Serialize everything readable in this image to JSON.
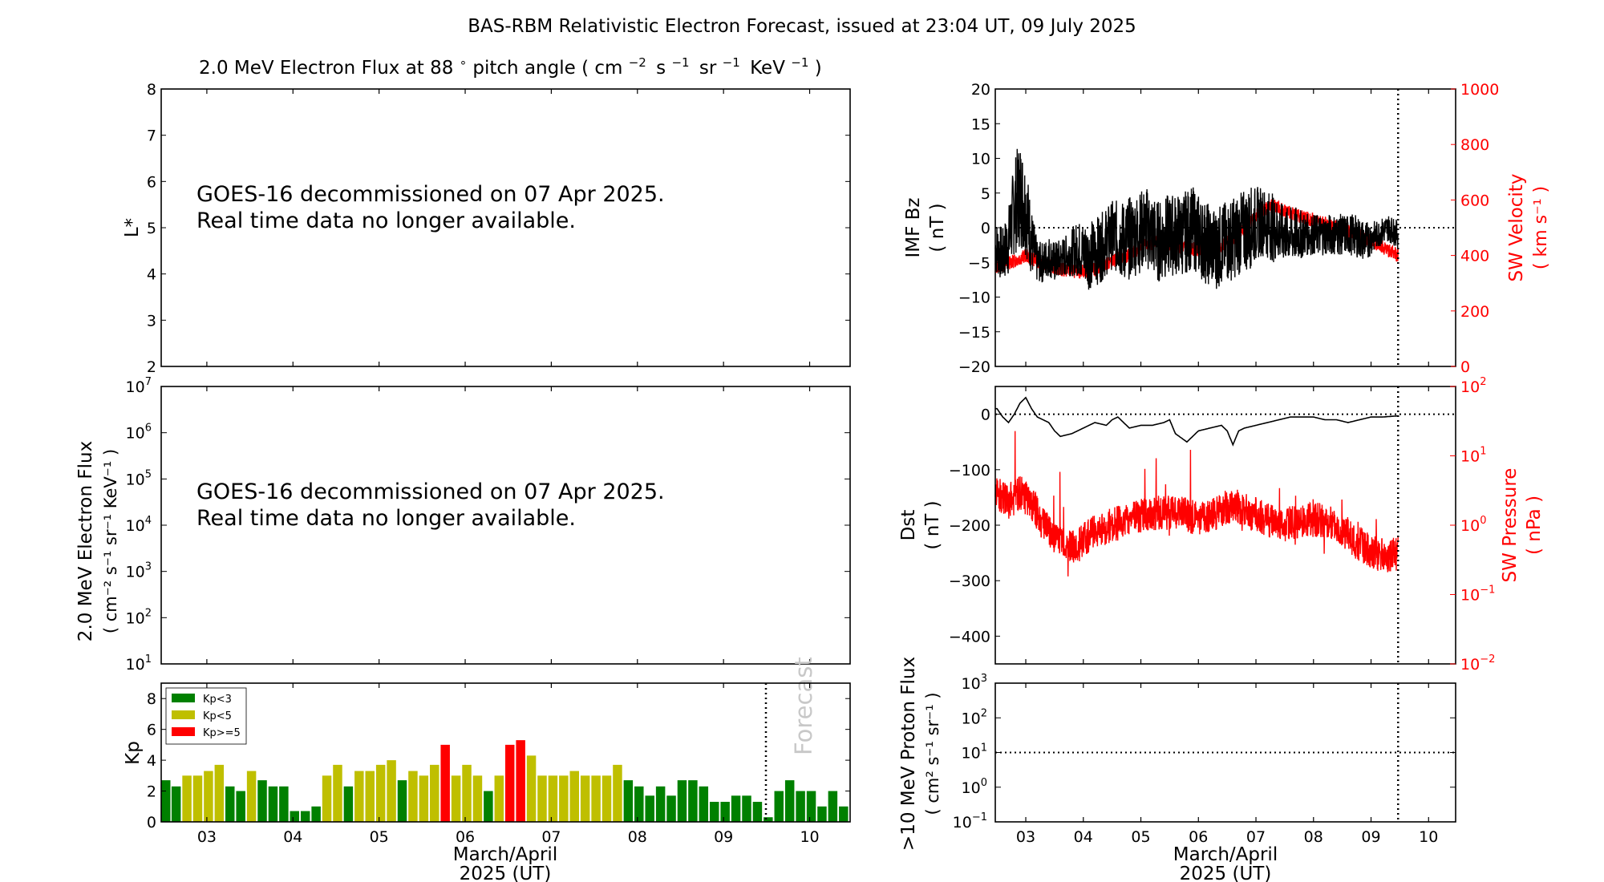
{
  "figure": {
    "title": "BAS-RBM Relativistic Electron Forecast, issued at 23:04 UT, 09 July 2025"
  },
  "left_panels": {
    "lstar": {
      "title_prefix": "2.0 MeV Electron Flux at 88",
      "title_degree": "∘",
      "title_mid": " pitch angle ( cm",
      "title_units": [
        {
          "base": "cm",
          "exp": "−2"
        },
        {
          "base": "s",
          "exp": "−1"
        },
        {
          "base": "sr",
          "exp": "−1"
        },
        {
          "base": "KeV",
          "exp": "−1"
        }
      ],
      "ylabel": "L*",
      "ylim": [
        2,
        8
      ],
      "yticks": [
        "2",
        "3",
        "4",
        "5",
        "6",
        "7",
        "8"
      ],
      "message_line1": "GOES-16 decommissioned on 07 Apr 2025.",
      "message_line2": "Real time data no longer available."
    },
    "flux": {
      "ylabel_line1": "2.0 MeV Electron Flux",
      "ylabel_line2": "( cm⁻² s⁻¹ sr⁻¹ KeV⁻¹ )",
      "yticks": [
        {
          "base": "10",
          "exp": "1"
        },
        {
          "base": "10",
          "exp": "2"
        },
        {
          "base": "10",
          "exp": "3"
        },
        {
          "base": "10",
          "exp": "4"
        },
        {
          "base": "10",
          "exp": "5"
        },
        {
          "base": "10",
          "exp": "6"
        },
        {
          "base": "10",
          "exp": "7"
        }
      ],
      "message_line1": "GOES-16 decommissioned on 07 Apr 2025.",
      "message_line2": "Real time data no longer available."
    },
    "kp": {
      "ylabel": "Kp",
      "xlabel_line1": "March/April",
      "xlabel_line2": "2025 (UT)",
      "forecast_label": "Forecast",
      "legend": [
        {
          "label": "Kp<3",
          "color": "#008000"
        },
        {
          "label": "Kp<5",
          "color": "#bfbf00"
        },
        {
          "label": "Kp>=5",
          "color": "#ff0000"
        }
      ]
    }
  },
  "right_panels": {
    "imf": {
      "ylabel_left_line1": "IMF Bz",
      "ylabel_left_line2": "( nT )",
      "ylabel_right_line1": "SW Velocity",
      "ylabel_right_line2": "( km s⁻¹ )",
      "left_color": "#000000",
      "right_color": "#ff0000"
    },
    "dst": {
      "ylabel_left_line1": "Dst",
      "ylabel_left_line2": "( nT )",
      "ylabel_right_line1": "SW Pressure",
      "ylabel_right_line2": "( nPa )"
    },
    "proton": {
      "ylabel_line1": ">10 MeV Proton Flux",
      "ylabel_line2": "( cm² s⁻¹ sr⁻¹ )",
      "xlabel_line1": "March/April",
      "xlabel_line2": "2025 (UT)"
    }
  },
  "chart_data": [
    {
      "type": "line",
      "name": "L* electron flux",
      "ylabel": "L*",
      "ylim": [
        2,
        8
      ],
      "xlim": [
        2.47,
        10.47
      ],
      "note_text": "GOES-16 decommissioned on 07 Apr 2025. Real time data no longer available."
    },
    {
      "type": "line",
      "name": "2.0 MeV Electron Flux",
      "yscale": "log",
      "ylim": [
        10,
        10000000
      ],
      "xlim": [
        2.47,
        10.47
      ]
    },
    {
      "type": "bar",
      "name": "Kp",
      "xlim": [
        2.47,
        10.47
      ],
      "ylim": [
        0,
        9
      ],
      "yticks": [
        0,
        2,
        4,
        6,
        8
      ],
      "xticks": [
        "03",
        "04",
        "05",
        "06",
        "07",
        "08",
        "09",
        "10"
      ],
      "bar_width_days": 0.107,
      "start_day": 2.5,
      "step_days": 0.125,
      "values": [
        2.7,
        2.3,
        3.0,
        3.0,
        3.3,
        3.7,
        2.3,
        2.0,
        3.3,
        2.7,
        2.3,
        2.3,
        0.7,
        0.7,
        1.0,
        3.0,
        3.7,
        2.3,
        3.3,
        3.3,
        3.7,
        4.0,
        2.7,
        3.3,
        3.0,
        3.7,
        5.0,
        3.0,
        3.7,
        3.0,
        2.0,
        3.0,
        5.0,
        5.3,
        4.3,
        3.0,
        3.0,
        3.0,
        3.3,
        3.0,
        3.0,
        3.0,
        3.7,
        2.7,
        2.3,
        1.7,
        2.3,
        1.7,
        2.7,
        2.7,
        2.3,
        1.3,
        1.3,
        1.7,
        1.7,
        1.3,
        0.3,
        2.0,
        2.7,
        2.0,
        2.0,
        1.0,
        2.0,
        1.0,
        2.0
      ],
      "forecast_start": 9.47,
      "thresholds": {
        "green_below": 3,
        "yellow_below": 5
      }
    },
    {
      "type": "line",
      "name": "IMF Bz / SW Velocity",
      "xlim": [
        2.47,
        10.47
      ],
      "xticks": [
        "03",
        "04",
        "05",
        "06",
        "07",
        "08",
        "09",
        "10"
      ],
      "y_left": {
        "label": "IMF Bz",
        "ylim": [
          -20,
          20
        ],
        "yticks": [
          -20,
          -15,
          -10,
          -5,
          0,
          5,
          10,
          15,
          20
        ]
      },
      "y_right": {
        "label": "SW Velocity",
        "ylim": [
          0,
          1000
        ],
        "yticks": [
          0,
          200,
          400,
          600,
          800,
          1000
        ]
      },
      "now_line": 9.47,
      "zero_line": 0,
      "bz_profile": {
        "x": [
          2.5,
          2.6,
          2.7,
          2.8,
          2.9,
          3.0,
          3.1,
          3.2,
          3.3,
          3.4,
          3.5,
          3.7,
          3.9,
          4.1,
          4.3,
          4.5,
          4.7,
          4.9,
          5.1,
          5.3,
          5.5,
          5.7,
          5.9,
          6.1,
          6.3,
          6.5,
          6.7,
          6.9,
          7.1,
          7.3,
          7.5,
          7.7,
          7.9,
          8.1,
          8.3,
          8.5,
          8.7,
          8.9,
          9.1,
          9.3,
          9.47
        ],
        "center": [
          -3,
          -4,
          -2,
          3,
          5,
          3,
          -2,
          -5,
          -5,
          -4,
          -5,
          -4,
          -3,
          -4,
          -3,
          -1,
          -2,
          -1,
          0,
          -2,
          -1,
          -1,
          0,
          -2,
          -3,
          -2,
          -1,
          0,
          1,
          0,
          -1,
          -1,
          -1,
          -1,
          -1,
          -1,
          -1,
          -2,
          -1,
          0,
          -1
        ],
        "spread": [
          4,
          4,
          5,
          7,
          8,
          7,
          5,
          3,
          3,
          3,
          3,
          3,
          4,
          5,
          5,
          5,
          6,
          6,
          6,
          6,
          6,
          6,
          6,
          6,
          6,
          6,
          6,
          6,
          5,
          5,
          4,
          4,
          3,
          3,
          3,
          3,
          3,
          3,
          2,
          2,
          2
        ]
      },
      "velocity_profile": {
        "x": [
          2.5,
          2.8,
          3.0,
          3.3,
          3.6,
          3.9,
          4.2,
          4.5,
          4.8,
          5.1,
          5.4,
          5.7,
          6.0,
          6.3,
          6.6,
          6.9,
          7.1,
          7.3,
          7.5,
          7.8,
          8.1,
          8.4,
          8.7,
          9.0,
          9.3,
          9.47
        ],
        "values": [
          360,
          380,
          400,
          370,
          350,
          340,
          350,
          380,
          400,
          440,
          450,
          430,
          420,
          420,
          460,
          520,
          560,
          580,
          560,
          540,
          520,
          500,
          480,
          450,
          420,
          400
        ]
      }
    },
    {
      "type": "line",
      "name": "Dst / SW Pressure",
      "xlim": [
        2.47,
        10.47
      ],
      "xticks": [
        "03",
        "04",
        "05",
        "06",
        "07",
        "08",
        "09",
        "10"
      ],
      "y_left": {
        "label": "Dst",
        "ylim": [
          -450,
          50
        ],
        "yticks": [
          -400,
          -300,
          -200,
          -100,
          0
        ]
      },
      "y_right": {
        "label": "SW Pressure",
        "yscale": "log",
        "ylim": [
          0.01,
          100
        ]
      },
      "now_line": 9.47,
      "zero_line": 0,
      "dst_profile": {
        "x": [
          2.5,
          2.6,
          2.7,
          2.8,
          2.9,
          3.0,
          3.1,
          3.2,
          3.3,
          3.4,
          3.5,
          3.6,
          3.8,
          4.0,
          4.2,
          4.4,
          4.5,
          4.6,
          4.8,
          5.0,
          5.2,
          5.4,
          5.5,
          5.6,
          5.8,
          6.0,
          6.2,
          6.4,
          6.5,
          6.6,
          6.7,
          6.8,
          7.0,
          7.2,
          7.4,
          7.6,
          7.8,
          8.0,
          8.2,
          8.4,
          8.6,
          8.8,
          9.0,
          9.2,
          9.47
        ],
        "values": [
          10,
          -5,
          -15,
          0,
          20,
          30,
          10,
          -5,
          -10,
          -15,
          -30,
          -40,
          -35,
          -25,
          -15,
          -20,
          -10,
          -5,
          -25,
          -20,
          -20,
          -15,
          -10,
          -35,
          -50,
          -30,
          -25,
          -20,
          -30,
          -55,
          -30,
          -25,
          -20,
          -15,
          -10,
          -5,
          -5,
          -5,
          -10,
          -10,
          -15,
          -10,
          -5,
          -5,
          -3
        ]
      },
      "pressure_profile": {
        "x": [
          2.5,
          2.7,
          2.9,
          3.1,
          3.3,
          3.5,
          3.7,
          3.9,
          4.2,
          4.5,
          4.8,
          5.1,
          5.4,
          5.7,
          6.0,
          6.3,
          6.6,
          6.9,
          7.2,
          7.5,
          7.8,
          8.1,
          8.4,
          8.7,
          9.0,
          9.3,
          9.47
        ],
        "values": [
          3,
          2,
          3,
          2,
          1,
          0.7,
          0.5,
          0.5,
          0.8,
          1.0,
          1.2,
          1.5,
          1.5,
          1.5,
          1.2,
          1.5,
          2,
          1.5,
          1.2,
          1.0,
          1.2,
          1.2,
          1.0,
          0.6,
          0.4,
          0.35,
          0.4
        ]
      }
    },
    {
      "type": "line",
      "name": ">10 MeV Proton Flux",
      "yscale": "log",
      "xlim": [
        2.47,
        10.47
      ],
      "xticks": [
        "03",
        "04",
        "05",
        "06",
        "07",
        "08",
        "09",
        "10"
      ],
      "ylim": [
        0.1,
        1000
      ],
      "yticks": [
        {
          "base": "10",
          "exp": "−1"
        },
        {
          "base": "10",
          "exp": "0"
        },
        {
          "base": "10",
          "exp": "1"
        },
        {
          "base": "10",
          "exp": "2"
        },
        {
          "base": "10",
          "exp": "3"
        }
      ],
      "threshold_line": 10,
      "now_line": 9.47
    }
  ]
}
